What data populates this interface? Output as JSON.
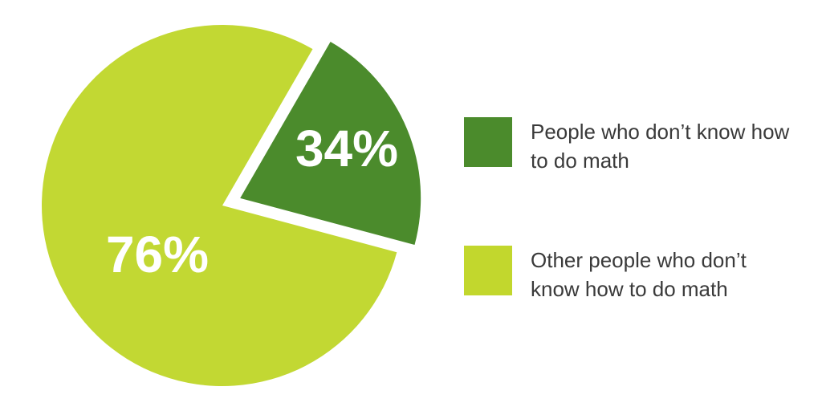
{
  "chart_data": {
    "type": "pie",
    "title": "",
    "slices": [
      {
        "label": "People who don’t know how to do math",
        "value": 34,
        "display": "34%",
        "color": "#4b8b2c"
      },
      {
        "label": "Other people who don’t know how to do math",
        "value": 76,
        "display": "76%",
        "color": "#c2d833"
      }
    ],
    "legend": {
      "position": "right",
      "items": [
        {
          "text": "People who don’t know how to do math",
          "color": "#4b8b2c"
        },
        {
          "text": "Other people who don’t know how to do math",
          "color": "#c2d72d"
        }
      ]
    }
  }
}
